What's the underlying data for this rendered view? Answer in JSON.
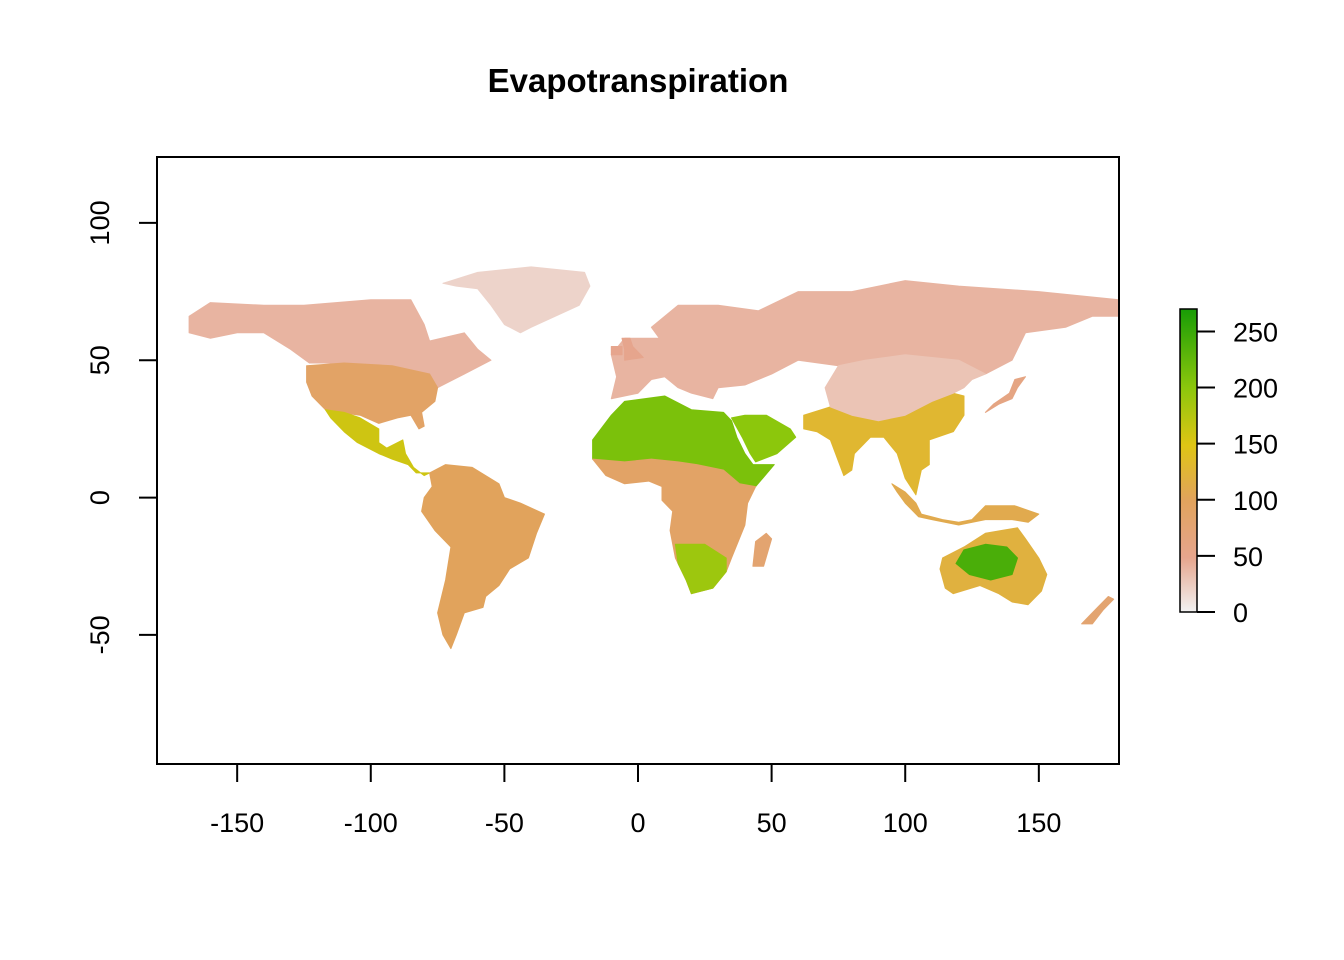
{
  "chart_data": {
    "type": "heatmap",
    "subtype": "raster-map",
    "title": "Evapotranspiration",
    "xlabel": "",
    "ylabel": "",
    "xlim": [
      -180,
      180
    ],
    "ylim": [
      -97,
      124
    ],
    "x_ticks": [
      -150,
      -100,
      -50,
      0,
      50,
      100,
      150
    ],
    "y_ticks": [
      -50,
      0,
      50,
      100
    ],
    "x_tick_labels": [
      "-150",
      "-100",
      "-50",
      "0",
      "50",
      "100",
      "150"
    ],
    "y_tick_labels": [
      "-50",
      "0",
      "50",
      "100"
    ],
    "legend": {
      "type": "colorbar",
      "placement": "right",
      "range": [
        0,
        270
      ],
      "ticks": [
        0,
        50,
        100,
        150,
        200,
        250
      ],
      "tick_labels": [
        "0",
        "50",
        "100",
        "150",
        "200",
        "250"
      ],
      "colors": [
        "#f2f2f2",
        "#e6a58d",
        "#e1a35c",
        "#dfc514",
        "#8cc70c",
        "#189c06"
      ]
    },
    "regions": [
      {
        "name": "",
        "value": 40,
        "polygon": [
          [
            -168,
            66
          ],
          [
            -160,
            71
          ],
          [
            -140,
            70
          ],
          [
            -125,
            70
          ],
          [
            -100,
            72
          ],
          [
            -85,
            72
          ],
          [
            -80,
            63
          ],
          [
            -78,
            57
          ],
          [
            -65,
            60
          ],
          [
            -60,
            54
          ],
          [
            -55,
            50
          ],
          [
            -65,
            45
          ],
          [
            -75,
            40
          ],
          [
            -78,
            45
          ],
          [
            -92,
            48
          ],
          [
            -110,
            49
          ],
          [
            -123,
            49
          ],
          [
            -130,
            54
          ],
          [
            -140,
            60
          ],
          [
            -150,
            60
          ],
          [
            -160,
            58
          ],
          [
            -168,
            60
          ]
        ]
      },
      {
        "name": "",
        "value": 90,
        "polygon": [
          [
            -124,
            48
          ],
          [
            -110,
            49
          ],
          [
            -92,
            48
          ],
          [
            -78,
            45
          ],
          [
            -75,
            40
          ],
          [
            -76,
            35
          ],
          [
            -81,
            31
          ],
          [
            -80,
            26
          ],
          [
            -82,
            25
          ],
          [
            -85,
            30
          ],
          [
            -90,
            29
          ],
          [
            -97,
            27
          ],
          [
            -104,
            30
          ],
          [
            -112,
            31
          ],
          [
            -117,
            32
          ],
          [
            -122,
            37
          ],
          [
            -124,
            42
          ]
        ]
      },
      {
        "name": "",
        "value": 160,
        "polygon": [
          [
            -117,
            32
          ],
          [
            -110,
            31
          ],
          [
            -104,
            29
          ],
          [
            -97,
            25
          ],
          [
            -97,
            20
          ],
          [
            -94,
            18
          ],
          [
            -88,
            21
          ],
          [
            -87,
            16
          ],
          [
            -84,
            11
          ],
          [
            -80,
            8
          ],
          [
            -78,
            9
          ],
          [
            -83,
            9
          ],
          [
            -86,
            12
          ],
          [
            -92,
            14
          ],
          [
            -97,
            16
          ],
          [
            -105,
            20
          ],
          [
            -110,
            24
          ],
          [
            -115,
            29
          ]
        ]
      },
      {
        "name": "",
        "value": 20,
        "polygon": [
          [
            -73,
            78
          ],
          [
            -60,
            82
          ],
          [
            -40,
            84
          ],
          [
            -20,
            82
          ],
          [
            -18,
            77
          ],
          [
            -22,
            70
          ],
          [
            -40,
            62
          ],
          [
            -44,
            60
          ],
          [
            -50,
            63
          ],
          [
            -55,
            70
          ],
          [
            -60,
            76
          ],
          [
            -68,
            77
          ]
        ]
      },
      {
        "name": "",
        "value": 100,
        "polygon": [
          [
            -78,
            9
          ],
          [
            -72,
            12
          ],
          [
            -62,
            11
          ],
          [
            -52,
            5
          ],
          [
            -50,
            0
          ],
          [
            -44,
            -2
          ],
          [
            -35,
            -6
          ],
          [
            -38,
            -13
          ],
          [
            -41,
            -22
          ],
          [
            -48,
            -26
          ],
          [
            -52,
            -32
          ],
          [
            -57,
            -36
          ],
          [
            -58,
            -40
          ],
          [
            -65,
            -42
          ],
          [
            -68,
            -50
          ],
          [
            -70,
            -55
          ],
          [
            -73,
            -50
          ],
          [
            -75,
            -42
          ],
          [
            -72,
            -30
          ],
          [
            -70,
            -18
          ],
          [
            -76,
            -12
          ],
          [
            -81,
            -5
          ],
          [
            -80,
            0
          ],
          [
            -77,
            4
          ]
        ]
      },
      {
        "name": "",
        "value": 40,
        "polygon": [
          [
            -10,
            36
          ],
          [
            0,
            38
          ],
          [
            5,
            43
          ],
          [
            10,
            44
          ],
          [
            15,
            40
          ],
          [
            20,
            38
          ],
          [
            28,
            36
          ],
          [
            30,
            40
          ],
          [
            40,
            41
          ],
          [
            50,
            45
          ],
          [
            60,
            50
          ],
          [
            75,
            48
          ],
          [
            85,
            50
          ],
          [
            100,
            52
          ],
          [
            120,
            50
          ],
          [
            130,
            45
          ],
          [
            140,
            50
          ],
          [
            145,
            60
          ],
          [
            160,
            62
          ],
          [
            170,
            66
          ],
          [
            180,
            66
          ],
          [
            180,
            72
          ],
          [
            150,
            75
          ],
          [
            120,
            77
          ],
          [
            100,
            79
          ],
          [
            80,
            75
          ],
          [
            60,
            75
          ],
          [
            45,
            68
          ],
          [
            30,
            70
          ],
          [
            15,
            70
          ],
          [
            5,
            62
          ],
          [
            8,
            58
          ],
          [
            -5,
            58
          ],
          [
            -10,
            52
          ],
          [
            -8,
            44
          ]
        ]
      },
      {
        "name": "",
        "value": 210,
        "polygon": [
          [
            -17,
            21
          ],
          [
            -10,
            30
          ],
          [
            -5,
            35
          ],
          [
            10,
            37
          ],
          [
            20,
            32
          ],
          [
            32,
            31
          ],
          [
            35,
            28
          ],
          [
            37,
            22
          ],
          [
            40,
            16
          ],
          [
            43,
            12
          ],
          [
            51,
            12
          ],
          [
            44,
            4
          ],
          [
            38,
            5
          ],
          [
            32,
            10
          ],
          [
            22,
            12
          ],
          [
            15,
            13
          ],
          [
            5,
            14
          ],
          [
            -5,
            13
          ],
          [
            -17,
            14
          ]
        ]
      },
      {
        "name": "",
        "value": 200,
        "polygon": [
          [
            35,
            29
          ],
          [
            40,
            30
          ],
          [
            48,
            30
          ],
          [
            57,
            25
          ],
          [
            59,
            22
          ],
          [
            52,
            16
          ],
          [
            44,
            13
          ],
          [
            42,
            16
          ],
          [
            39,
            22
          ]
        ]
      },
      {
        "name": "",
        "value": 90,
        "polygon": [
          [
            -17,
            14
          ],
          [
            -5,
            13
          ],
          [
            5,
            14
          ],
          [
            15,
            13
          ],
          [
            22,
            12
          ],
          [
            32,
            10
          ],
          [
            38,
            5
          ],
          [
            44,
            4
          ],
          [
            41,
            -2
          ],
          [
            40,
            -10
          ],
          [
            35,
            -22
          ],
          [
            33,
            -27
          ],
          [
            28,
            -33
          ],
          [
            20,
            -35
          ],
          [
            18,
            -30
          ],
          [
            14,
            -22
          ],
          [
            12,
            -12
          ],
          [
            13,
            -5
          ],
          [
            9,
            -1
          ],
          [
            9,
            4
          ],
          [
            4,
            6
          ],
          [
            -5,
            5
          ],
          [
            -12,
            8
          ]
        ]
      },
      {
        "name": "",
        "value": 190,
        "polygon": [
          [
            14,
            -17
          ],
          [
            25,
            -17
          ],
          [
            33,
            -22
          ],
          [
            33,
            -27
          ],
          [
            28,
            -33
          ],
          [
            20,
            -35
          ],
          [
            18,
            -30
          ],
          [
            15,
            -24
          ]
        ]
      },
      {
        "name": "",
        "value": 130,
        "polygon": [
          [
            62,
            25
          ],
          [
            67,
            24
          ],
          [
            72,
            21
          ],
          [
            77,
            8
          ],
          [
            80,
            10
          ],
          [
            81,
            16
          ],
          [
            87,
            22
          ],
          [
            92,
            22
          ],
          [
            97,
            16
          ],
          [
            100,
            7
          ],
          [
            104,
            1
          ],
          [
            106,
            10
          ],
          [
            109,
            12
          ],
          [
            109,
            21
          ],
          [
            118,
            24
          ],
          [
            122,
            30
          ],
          [
            122,
            37
          ],
          [
            118,
            38
          ],
          [
            110,
            35
          ],
          [
            100,
            30
          ],
          [
            90,
            28
          ],
          [
            80,
            30
          ],
          [
            72,
            33
          ],
          [
            62,
            30
          ]
        ]
      },
      {
        "name": "",
        "value": 30,
        "polygon": [
          [
            72,
            33
          ],
          [
            80,
            30
          ],
          [
            90,
            28
          ],
          [
            100,
            30
          ],
          [
            110,
            35
          ],
          [
            118,
            38
          ],
          [
            122,
            40
          ],
          [
            125,
            43
          ],
          [
            130,
            45
          ],
          [
            120,
            50
          ],
          [
            100,
            52
          ],
          [
            85,
            50
          ],
          [
            75,
            48
          ],
          [
            70,
            40
          ]
        ]
      },
      {
        "name": "",
        "value": 110,
        "polygon": [
          [
            95,
            5
          ],
          [
            100,
            2
          ],
          [
            104,
            -2
          ],
          [
            106,
            -6
          ],
          [
            114,
            -8
          ],
          [
            120,
            -9
          ],
          [
            125,
            -8
          ],
          [
            130,
            -3
          ],
          [
            141,
            -3
          ],
          [
            150,
            -6
          ],
          [
            146,
            -9
          ],
          [
            140,
            -8
          ],
          [
            130,
            -8
          ],
          [
            120,
            -10
          ],
          [
            110,
            -8
          ],
          [
            105,
            -7
          ],
          [
            100,
            -2
          ],
          [
            97,
            2
          ]
        ]
      },
      {
        "name": "",
        "value": 120,
        "polygon": [
          [
            114,
            -22
          ],
          [
            122,
            -18
          ],
          [
            130,
            -13
          ],
          [
            136,
            -12
          ],
          [
            142,
            -11
          ],
          [
            145,
            -15
          ],
          [
            150,
            -22
          ],
          [
            153,
            -28
          ],
          [
            151,
            -34
          ],
          [
            146,
            -39
          ],
          [
            140,
            -38
          ],
          [
            135,
            -35
          ],
          [
            128,
            -32
          ],
          [
            118,
            -35
          ],
          [
            115,
            -33
          ],
          [
            113,
            -26
          ]
        ]
      },
      {
        "name": "",
        "value": 240,
        "polygon": [
          [
            122,
            -19
          ],
          [
            130,
            -17
          ],
          [
            138,
            -18
          ],
          [
            142,
            -22
          ],
          [
            140,
            -28
          ],
          [
            132,
            -30
          ],
          [
            124,
            -28
          ],
          [
            119,
            -24
          ]
        ]
      },
      {
        "name": "",
        "value": 80,
        "polygon": [
          [
            166,
            -46
          ],
          [
            170,
            -46
          ],
          [
            174,
            -41
          ],
          [
            178,
            -37
          ],
          [
            176,
            -36
          ],
          [
            172,
            -40
          ],
          [
            168,
            -44
          ]
        ]
      },
      {
        "name": "",
        "value": 80,
        "polygon": [
          [
            43,
            -25
          ],
          [
            47,
            -25
          ],
          [
            50,
            -15
          ],
          [
            48,
            -13
          ],
          [
            44,
            -16
          ]
        ]
      },
      {
        "name": "",
        "value": 60,
        "polygon": [
          [
            130,
            31
          ],
          [
            135,
            34
          ],
          [
            140,
            36
          ],
          [
            142,
            40
          ],
          [
            145,
            44
          ],
          [
            141,
            43
          ],
          [
            139,
            38
          ],
          [
            133,
            34
          ]
        ]
      },
      {
        "name": "",
        "value": 50,
        "polygon": [
          [
            -10,
            52
          ],
          [
            -6,
            52
          ],
          [
            -6,
            55
          ],
          [
            -10,
            55
          ]
        ]
      },
      {
        "name": "",
        "value": 50,
        "polygon": [
          [
            -5,
            50
          ],
          [
            2,
            51
          ],
          [
            -2,
            55
          ],
          [
            -3,
            58
          ],
          [
            -6,
            58
          ],
          [
            -5,
            54
          ]
        ]
      }
    ]
  }
}
